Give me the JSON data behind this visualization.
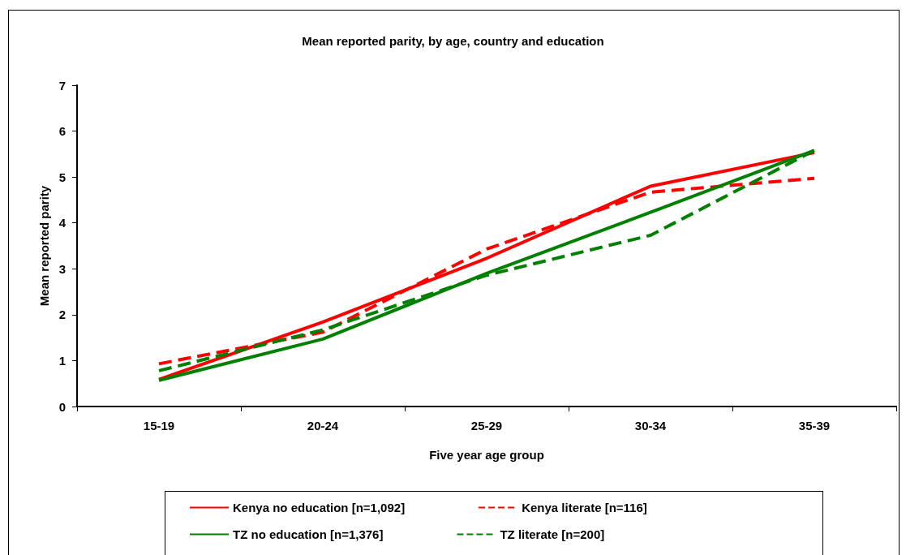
{
  "chart_data": {
    "type": "line",
    "title": "Mean reported parity, by age, country and education",
    "xlabel": "Five year age group",
    "ylabel": "Mean reported parity",
    "categories": [
      "15-19",
      "20-24",
      "25-29",
      "30-34",
      "35-39"
    ],
    "series": [
      {
        "name": "Kenya no education [n=1,092]",
        "color": "#ff0000",
        "line_style": "solid",
        "values": [
          0.59,
          1.84,
          3.23,
          4.8,
          5.53
        ]
      },
      {
        "name": "Kenya literate [n=116]",
        "color": "#ff0000",
        "line_style": "dashed",
        "values": [
          0.93,
          1.62,
          3.43,
          4.67,
          4.97
        ]
      },
      {
        "name": "TZ no education [n=1,376]",
        "color": "#008000",
        "line_style": "solid",
        "values": [
          0.57,
          1.47,
          2.9,
          4.23,
          5.58
        ]
      },
      {
        "name": "TZ literate [n=200]",
        "color": "#008000",
        "line_style": "dashed",
        "values": [
          0.78,
          1.67,
          2.86,
          3.73,
          5.58
        ]
      }
    ],
    "ylim": [
      0,
      7
    ],
    "yticks": [
      0,
      1,
      2,
      3,
      4,
      5,
      6,
      7
    ],
    "grid": false,
    "legend": "bottom",
    "marker": "none"
  }
}
